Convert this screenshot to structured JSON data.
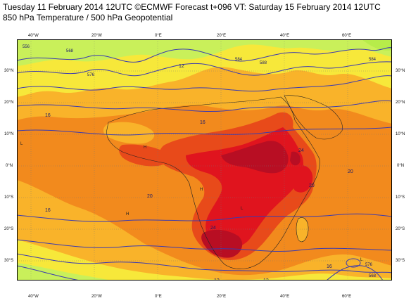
{
  "header": {
    "title": "Tuesday 11 February 2014 12UTC ©ECMWF Forecast t+096 VT: Saturday 15 February 2014 12UTC",
    "subtitle": "850 hPa Temperature / 500 hPa Geopotential"
  },
  "map": {
    "lon_labels_top": [
      "40°W",
      "20°W",
      "0°E",
      "20°E",
      "40°E",
      "60°E"
    ],
    "lon_labels_bottom": [
      "40°W",
      "20°W",
      "0°E",
      "20°E",
      "40°E",
      "60°E"
    ],
    "lat_labels_left": [
      "30°N",
      "20°N",
      "10°N",
      "0°N",
      "10°S",
      "20°S",
      "30°S"
    ],
    "lat_labels_right": [
      "30°N",
      "20°N",
      "10°N",
      "0°N",
      "10°S",
      "20°S",
      "30°S"
    ],
    "temperature_labels": [
      "12",
      "16",
      "16",
      "20",
      "20",
      "24",
      "24",
      "20",
      "16",
      "16",
      "12",
      "12"
    ],
    "geopotential_labels": [
      "556",
      "568",
      "576",
      "584",
      "588",
      "584",
      "576",
      "568"
    ],
    "pressure_markers": [
      "H",
      "L",
      "L",
      "H",
      "L",
      "H"
    ],
    "colors": {
      "temp_12_16": "#f7e83a",
      "temp_16_20": "#f9b32a",
      "temp_20_24": "#f28a1d",
      "temp_24_28": "#e84a1a",
      "temp_28_32": "#e0141e",
      "temp_32_plus": "#b80e23",
      "temp_cold": "#c9f05a",
      "contour": "#3a3ab0"
    }
  }
}
